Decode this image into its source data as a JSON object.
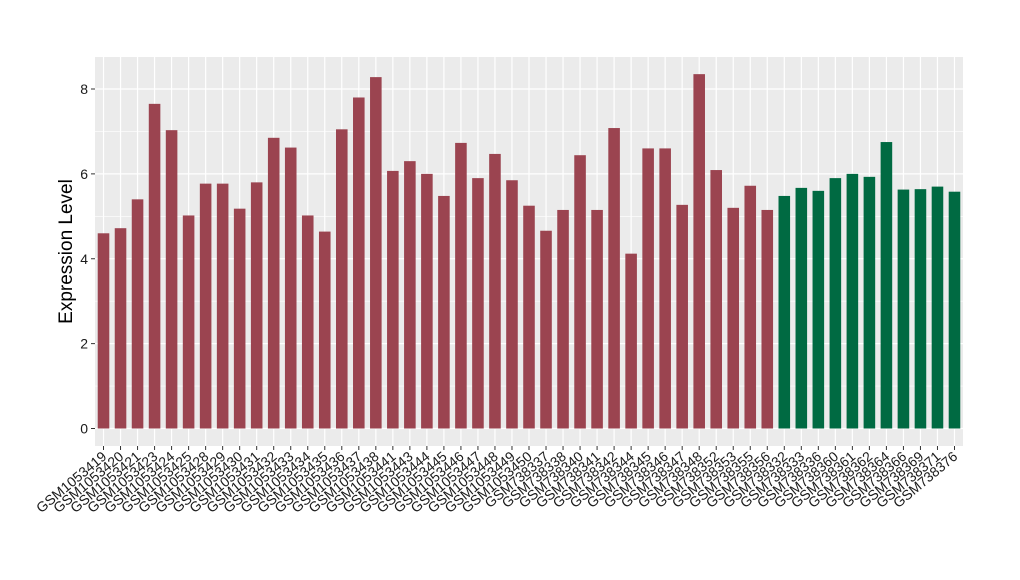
{
  "chart_data": {
    "type": "bar",
    "title": "",
    "xlabel": "",
    "ylabel": "Expression Level",
    "ylim": [
      0,
      8.7
    ],
    "yticks": [
      0,
      2,
      4,
      6,
      8
    ],
    "grid": true,
    "legend": "none",
    "colors": {
      "group_a": "#9b4450",
      "group_b": "#006a42",
      "panel_bg": "#ebebeb",
      "grid": "#ffffff"
    },
    "categories": [
      "GSM1053419",
      "GSM1053420",
      "GSM1053421",
      "GSM1053423",
      "GSM1053424",
      "GSM1053425",
      "GSM1053428",
      "GSM1053429",
      "GSM1053430",
      "GSM1053431",
      "GSM1053432",
      "GSM1053433",
      "GSM1053434",
      "GSM1053435",
      "GSM1053436",
      "GSM1053437",
      "GSM1053438",
      "GSM1053441",
      "GSM1053443",
      "GSM1053444",
      "GSM1053445",
      "GSM1053446",
      "GSM1053447",
      "GSM1053448",
      "GSM1053449",
      "GSM1053450",
      "GSM738337",
      "GSM738338",
      "GSM738340",
      "GSM738341",
      "GSM738342",
      "GSM738344",
      "GSM738345",
      "GSM738346",
      "GSM738347",
      "GSM738348",
      "GSM738352",
      "GSM738353",
      "GSM738355",
      "GSM738356",
      "GSM738332",
      "GSM738333",
      "GSM738336",
      "GSM738360",
      "GSM738361",
      "GSM738362",
      "GSM738364",
      "GSM738366",
      "GSM738369",
      "GSM738371",
      "GSM738376"
    ],
    "values": [
      4.6,
      4.72,
      5.4,
      7.65,
      7.03,
      5.02,
      5.77,
      5.77,
      5.18,
      5.8,
      6.85,
      6.62,
      5.02,
      4.64,
      7.05,
      7.8,
      8.28,
      6.07,
      6.3,
      6.0,
      5.48,
      6.73,
      5.9,
      6.47,
      5.85,
      5.25,
      4.66,
      5.15,
      6.44,
      5.15,
      7.08,
      4.12,
      6.6,
      6.6,
      5.27,
      8.35,
      6.09,
      5.2,
      5.72,
      5.15,
      5.48,
      5.67,
      5.6,
      5.9,
      6.0,
      5.93,
      6.75,
      5.63,
      5.64,
      5.7,
      5.58
    ],
    "groups": [
      "a",
      "a",
      "a",
      "a",
      "a",
      "a",
      "a",
      "a",
      "a",
      "a",
      "a",
      "a",
      "a",
      "a",
      "a",
      "a",
      "a",
      "a",
      "a",
      "a",
      "a",
      "a",
      "a",
      "a",
      "a",
      "a",
      "a",
      "a",
      "a",
      "a",
      "a",
      "a",
      "a",
      "a",
      "a",
      "a",
      "a",
      "a",
      "a",
      "a",
      "b",
      "b",
      "b",
      "b",
      "b",
      "b",
      "b",
      "b",
      "b",
      "b",
      "b"
    ]
  }
}
